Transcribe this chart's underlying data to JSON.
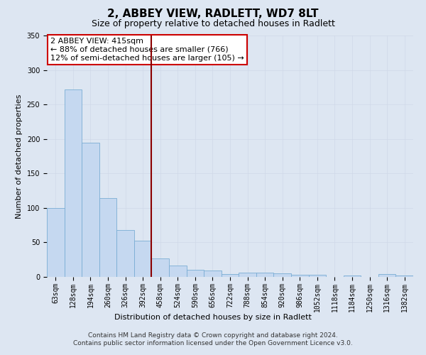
{
  "title": "2, ABBEY VIEW, RADLETT, WD7 8LT",
  "subtitle": "Size of property relative to detached houses in Radlett",
  "xlabel": "Distribution of detached houses by size in Radlett",
  "ylabel": "Number of detached properties",
  "footer_line1": "Contains HM Land Registry data © Crown copyright and database right 2024.",
  "footer_line2": "Contains public sector information licensed under the Open Government Licence v3.0.",
  "bar_labels": [
    "63sqm",
    "128sqm",
    "194sqm",
    "260sqm",
    "326sqm",
    "392sqm",
    "458sqm",
    "524sqm",
    "590sqm",
    "656sqm",
    "722sqm",
    "788sqm",
    "854sqm",
    "920sqm",
    "986sqm",
    "1052sqm",
    "1118sqm",
    "1184sqm",
    "1250sqm",
    "1316sqm",
    "1382sqm"
  ],
  "bar_values": [
    100,
    272,
    195,
    114,
    68,
    53,
    27,
    16,
    10,
    9,
    4,
    6,
    6,
    5,
    3,
    3,
    0,
    2,
    0,
    4,
    2
  ],
  "bar_color": "#c5d8f0",
  "bar_edge_color": "#7aadd4",
  "grid_color": "#d0d8e8",
  "background_color": "#dde6f2",
  "annotation_text": "2 ABBEY VIEW: 415sqm\n← 88% of detached houses are smaller (766)\n12% of semi-detached houses are larger (105) →",
  "annotation_box_color": "#ffffff",
  "annotation_box_edge_color": "#cc0000",
  "vline_x": 5.5,
  "vline_color": "#8b0000",
  "ylim": [
    0,
    350
  ],
  "yticks": [
    0,
    50,
    100,
    150,
    200,
    250,
    300,
    350
  ],
  "title_fontsize": 11,
  "subtitle_fontsize": 9,
  "xlabel_fontsize": 8,
  "ylabel_fontsize": 8,
  "tick_fontsize": 7,
  "annotation_fontsize": 8,
  "footer_fontsize": 6.5
}
